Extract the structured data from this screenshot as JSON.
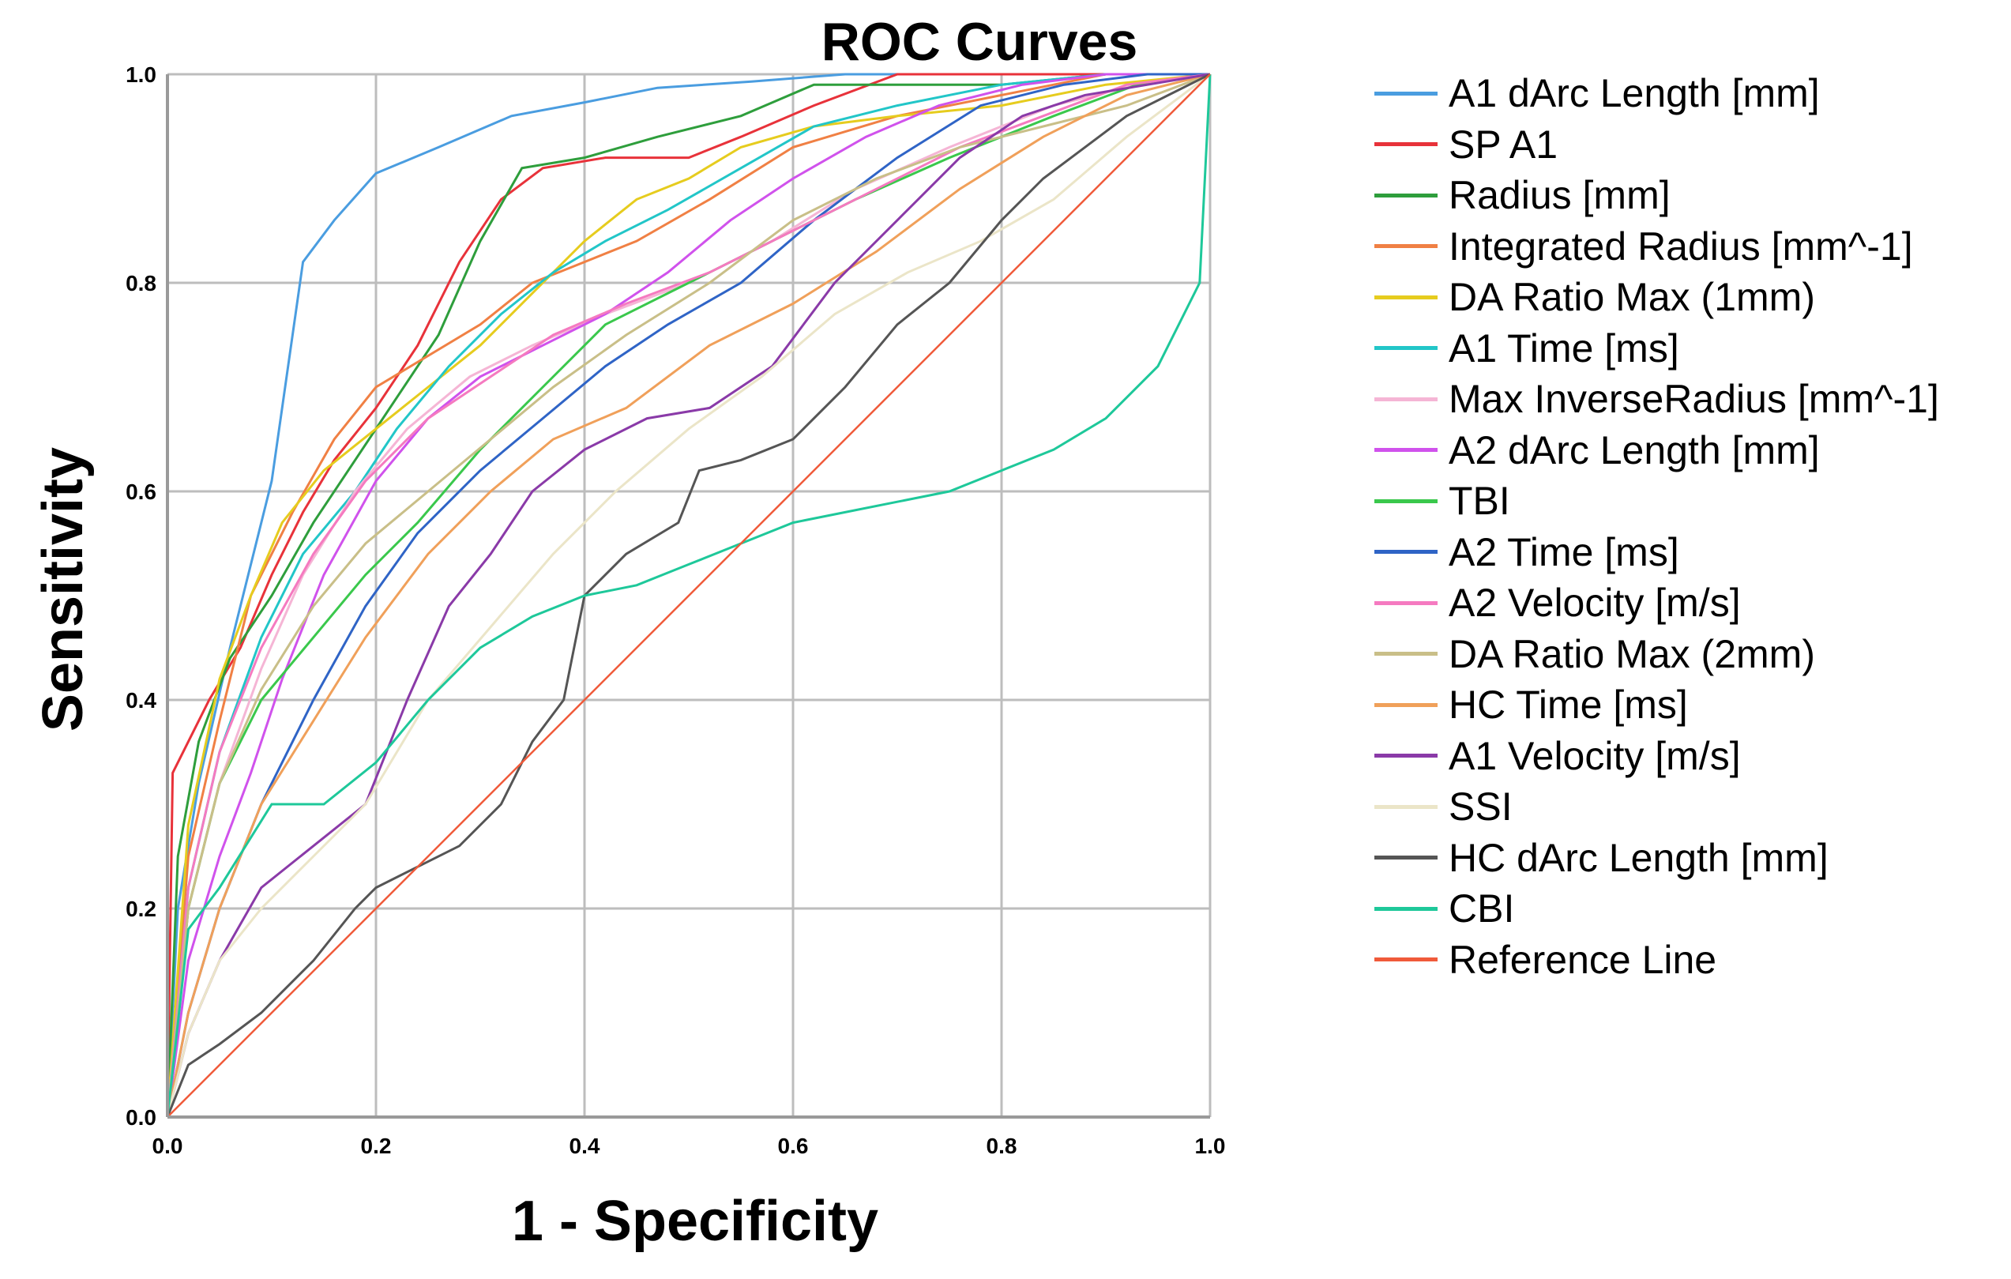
{
  "chart_data": {
    "type": "line",
    "title": "ROC Curves",
    "xlabel": "1 - Specificity",
    "ylabel": "Sensitivity",
    "xlim": [
      0,
      1
    ],
    "ylim": [
      0,
      1
    ],
    "grid": true,
    "legend_position": "right",
    "x_ticks": [
      "0.0",
      "0.2",
      "0.4",
      "0.6",
      "0.8",
      "1.0"
    ],
    "y_ticks": [
      "0.0",
      "0.2",
      "0.4",
      "0.6",
      "0.8",
      "1.0"
    ],
    "series": [
      {
        "name": "A1 dArc Length [mm]",
        "color": "#4a9de0",
        "x": [
          0,
          0.01,
          0.03,
          0.06,
          0.1,
          0.13,
          0.16,
          0.2,
          0.26,
          0.33,
          0.4,
          0.47,
          0.56,
          0.65,
          0.75,
          0.85,
          1
        ],
        "y": [
          0,
          0.2,
          0.32,
          0.45,
          0.61,
          0.82,
          0.86,
          0.905,
          0.93,
          0.96,
          0.973,
          0.987,
          0.993,
          1,
          1,
          1,
          1
        ]
      },
      {
        "name": "SP A1",
        "color": "#e8323a",
        "x": [
          0,
          0.005,
          0.02,
          0.04,
          0.07,
          0.1,
          0.13,
          0.16,
          0.2,
          0.24,
          0.28,
          0.32,
          0.36,
          0.42,
          0.5,
          0.55,
          0.62,
          0.7,
          0.8,
          0.9,
          1
        ],
        "y": [
          0,
          0.33,
          0.36,
          0.4,
          0.45,
          0.52,
          0.58,
          0.63,
          0.68,
          0.74,
          0.82,
          0.88,
          0.91,
          0.92,
          0.92,
          0.94,
          0.97,
          1,
          1,
          1,
          1
        ]
      },
      {
        "name": "Radius [mm]",
        "color": "#2e9e3c",
        "x": [
          0,
          0.01,
          0.03,
          0.06,
          0.1,
          0.14,
          0.18,
          0.22,
          0.26,
          0.3,
          0.34,
          0.4,
          0.47,
          0.55,
          0.62,
          0.7,
          0.8,
          0.9,
          1
        ],
        "y": [
          0,
          0.25,
          0.36,
          0.44,
          0.5,
          0.57,
          0.63,
          0.69,
          0.75,
          0.84,
          0.91,
          0.92,
          0.94,
          0.96,
          0.99,
          0.99,
          0.99,
          1,
          1
        ]
      },
      {
        "name": "Integrated Radius [mm^-1]",
        "color": "#f08044",
        "x": [
          0,
          0.02,
          0.05,
          0.08,
          0.12,
          0.16,
          0.2,
          0.25,
          0.3,
          0.35,
          0.4,
          0.45,
          0.52,
          0.6,
          0.7,
          0.8,
          0.9,
          1
        ],
        "y": [
          0,
          0.25,
          0.38,
          0.5,
          0.58,
          0.65,
          0.7,
          0.73,
          0.76,
          0.8,
          0.82,
          0.84,
          0.88,
          0.93,
          0.96,
          0.98,
          1,
          1
        ]
      },
      {
        "name": "DA Ratio Max (1mm)",
        "color": "#e6cc1e",
        "x": [
          0,
          0.02,
          0.05,
          0.08,
          0.11,
          0.15,
          0.2,
          0.25,
          0.3,
          0.35,
          0.4,
          0.45,
          0.5,
          0.55,
          0.62,
          0.7,
          0.8,
          0.9,
          1
        ],
        "y": [
          0,
          0.28,
          0.42,
          0.5,
          0.57,
          0.62,
          0.66,
          0.7,
          0.74,
          0.79,
          0.84,
          0.88,
          0.9,
          0.93,
          0.95,
          0.96,
          0.97,
          0.99,
          1
        ]
      },
      {
        "name": "A1 Time [ms]",
        "color": "#22c6c8",
        "x": [
          0,
          0.02,
          0.05,
          0.09,
          0.13,
          0.18,
          0.22,
          0.27,
          0.32,
          0.37,
          0.42,
          0.48,
          0.55,
          0.62,
          0.7,
          0.8,
          0.9,
          1
        ],
        "y": [
          0,
          0.22,
          0.35,
          0.46,
          0.54,
          0.6,
          0.66,
          0.72,
          0.77,
          0.81,
          0.84,
          0.87,
          0.91,
          0.95,
          0.97,
          0.99,
          1,
          1
        ]
      },
      {
        "name": "Max InverseRadius [mm^-1]",
        "color": "#f5b5d5",
        "x": [
          0,
          0.02,
          0.05,
          0.09,
          0.13,
          0.18,
          0.23,
          0.29,
          0.35,
          0.42,
          0.5,
          0.58,
          0.66,
          0.75,
          0.85,
          0.93,
          1
        ],
        "y": [
          0,
          0.2,
          0.32,
          0.43,
          0.52,
          0.6,
          0.66,
          0.71,
          0.74,
          0.77,
          0.8,
          0.84,
          0.89,
          0.93,
          0.97,
          0.99,
          1
        ]
      },
      {
        "name": "A2 dArc Length [mm]",
        "color": "#d052ec",
        "x": [
          0,
          0.02,
          0.05,
          0.08,
          0.11,
          0.15,
          0.2,
          0.25,
          0.3,
          0.36,
          0.42,
          0.48,
          0.54,
          0.6,
          0.67,
          0.74,
          0.82,
          0.9,
          1
        ],
        "y": [
          0,
          0.15,
          0.25,
          0.33,
          0.42,
          0.52,
          0.61,
          0.67,
          0.71,
          0.74,
          0.77,
          0.81,
          0.86,
          0.9,
          0.94,
          0.97,
          0.99,
          1,
          1
        ]
      },
      {
        "name": "TBI",
        "color": "#3ac84c",
        "x": [
          0,
          0.02,
          0.05,
          0.09,
          0.14,
          0.19,
          0.24,
          0.3,
          0.36,
          0.42,
          0.5,
          0.58,
          0.66,
          0.75,
          0.85,
          0.93,
          1
        ],
        "y": [
          0,
          0.2,
          0.32,
          0.4,
          0.46,
          0.52,
          0.57,
          0.64,
          0.7,
          0.76,
          0.8,
          0.84,
          0.88,
          0.92,
          0.96,
          0.99,
          1
        ]
      },
      {
        "name": "A2 Time [ms]",
        "color": "#2f64c6",
        "x": [
          0,
          0.02,
          0.05,
          0.09,
          0.14,
          0.19,
          0.24,
          0.3,
          0.36,
          0.42,
          0.48,
          0.55,
          0.62,
          0.7,
          0.78,
          0.86,
          0.94,
          1
        ],
        "y": [
          0,
          0.1,
          0.2,
          0.3,
          0.4,
          0.49,
          0.56,
          0.62,
          0.67,
          0.72,
          0.76,
          0.8,
          0.86,
          0.92,
          0.97,
          0.99,
          1,
          1
        ]
      },
      {
        "name": "A2 Velocity [m/s]",
        "color": "#f57ac0",
        "x": [
          0,
          0.02,
          0.05,
          0.09,
          0.14,
          0.19,
          0.25,
          0.31,
          0.37,
          0.44,
          0.52,
          0.6,
          0.68,
          0.76,
          0.84,
          0.92,
          1
        ],
        "y": [
          0,
          0.22,
          0.35,
          0.45,
          0.54,
          0.61,
          0.67,
          0.71,
          0.75,
          0.78,
          0.81,
          0.85,
          0.89,
          0.93,
          0.96,
          0.99,
          1
        ]
      },
      {
        "name": "DA Ratio Max (2mm)",
        "color": "#c9bf88",
        "x": [
          0,
          0.02,
          0.05,
          0.09,
          0.14,
          0.19,
          0.25,
          0.31,
          0.37,
          0.44,
          0.52,
          0.6,
          0.68,
          0.76,
          0.84,
          0.92,
          1
        ],
        "y": [
          0,
          0.2,
          0.32,
          0.41,
          0.49,
          0.55,
          0.6,
          0.65,
          0.7,
          0.75,
          0.8,
          0.86,
          0.9,
          0.93,
          0.95,
          0.97,
          1
        ]
      },
      {
        "name": "HC Time [ms]",
        "color": "#f0a05a",
        "x": [
          0,
          0.02,
          0.05,
          0.09,
          0.14,
          0.19,
          0.25,
          0.31,
          0.37,
          0.44,
          0.52,
          0.6,
          0.68,
          0.76,
          0.84,
          0.92,
          1
        ],
        "y": [
          0,
          0.1,
          0.2,
          0.3,
          0.38,
          0.46,
          0.54,
          0.6,
          0.65,
          0.68,
          0.74,
          0.78,
          0.83,
          0.89,
          0.94,
          0.98,
          1
        ]
      },
      {
        "name": "A1 Velocity [m/s]",
        "color": "#8a3aa8",
        "x": [
          0,
          0.02,
          0.05,
          0.09,
          0.14,
          0.19,
          0.23,
          0.27,
          0.31,
          0.35,
          0.4,
          0.46,
          0.52,
          0.58,
          0.64,
          0.7,
          0.76,
          0.82,
          0.88,
          0.94,
          1
        ],
        "y": [
          0,
          0.08,
          0.15,
          0.22,
          0.26,
          0.3,
          0.4,
          0.49,
          0.54,
          0.6,
          0.64,
          0.67,
          0.68,
          0.72,
          0.8,
          0.86,
          0.92,
          0.96,
          0.98,
          0.99,
          1
        ]
      },
      {
        "name": "SSI",
        "color": "#ebe5c8",
        "x": [
          0,
          0.02,
          0.05,
          0.09,
          0.14,
          0.19,
          0.25,
          0.31,
          0.37,
          0.43,
          0.5,
          0.57,
          0.64,
          0.71,
          0.78,
          0.85,
          0.92,
          1
        ],
        "y": [
          0,
          0.08,
          0.15,
          0.2,
          0.25,
          0.3,
          0.4,
          0.47,
          0.54,
          0.6,
          0.66,
          0.71,
          0.77,
          0.81,
          0.84,
          0.88,
          0.94,
          1
        ]
      },
      {
        "name": "HC dArc Length [mm]",
        "color": "#555555",
        "x": [
          0,
          0.02,
          0.05,
          0.09,
          0.14,
          0.18,
          0.2,
          0.24,
          0.28,
          0.32,
          0.35,
          0.38,
          0.4,
          0.44,
          0.49,
          0.51,
          0.55,
          0.6,
          0.65,
          0.7,
          0.75,
          0.8,
          0.84,
          0.88,
          0.92,
          0.96,
          1
        ],
        "y": [
          0,
          0.05,
          0.07,
          0.1,
          0.15,
          0.2,
          0.22,
          0.24,
          0.26,
          0.3,
          0.36,
          0.4,
          0.5,
          0.54,
          0.57,
          0.62,
          0.63,
          0.65,
          0.7,
          0.76,
          0.8,
          0.86,
          0.9,
          0.93,
          0.96,
          0.98,
          1
        ]
      },
      {
        "name": "CBI",
        "color": "#1ec89a",
        "x": [
          0,
          0.02,
          0.05,
          0.1,
          0.15,
          0.2,
          0.25,
          0.3,
          0.35,
          0.4,
          0.45,
          0.5,
          0.55,
          0.6,
          0.65,
          0.7,
          0.75,
          0.8,
          0.85,
          0.9,
          0.95,
          0.99,
          1
        ],
        "y": [
          0,
          0.18,
          0.22,
          0.3,
          0.3,
          0.34,
          0.4,
          0.45,
          0.48,
          0.5,
          0.51,
          0.53,
          0.55,
          0.57,
          0.58,
          0.59,
          0.6,
          0.62,
          0.64,
          0.67,
          0.72,
          0.8,
          1
        ]
      },
      {
        "name": "Reference Line",
        "color": "#f05a3a",
        "x": [
          0,
          1
        ],
        "y": [
          0,
          1
        ]
      }
    ]
  }
}
